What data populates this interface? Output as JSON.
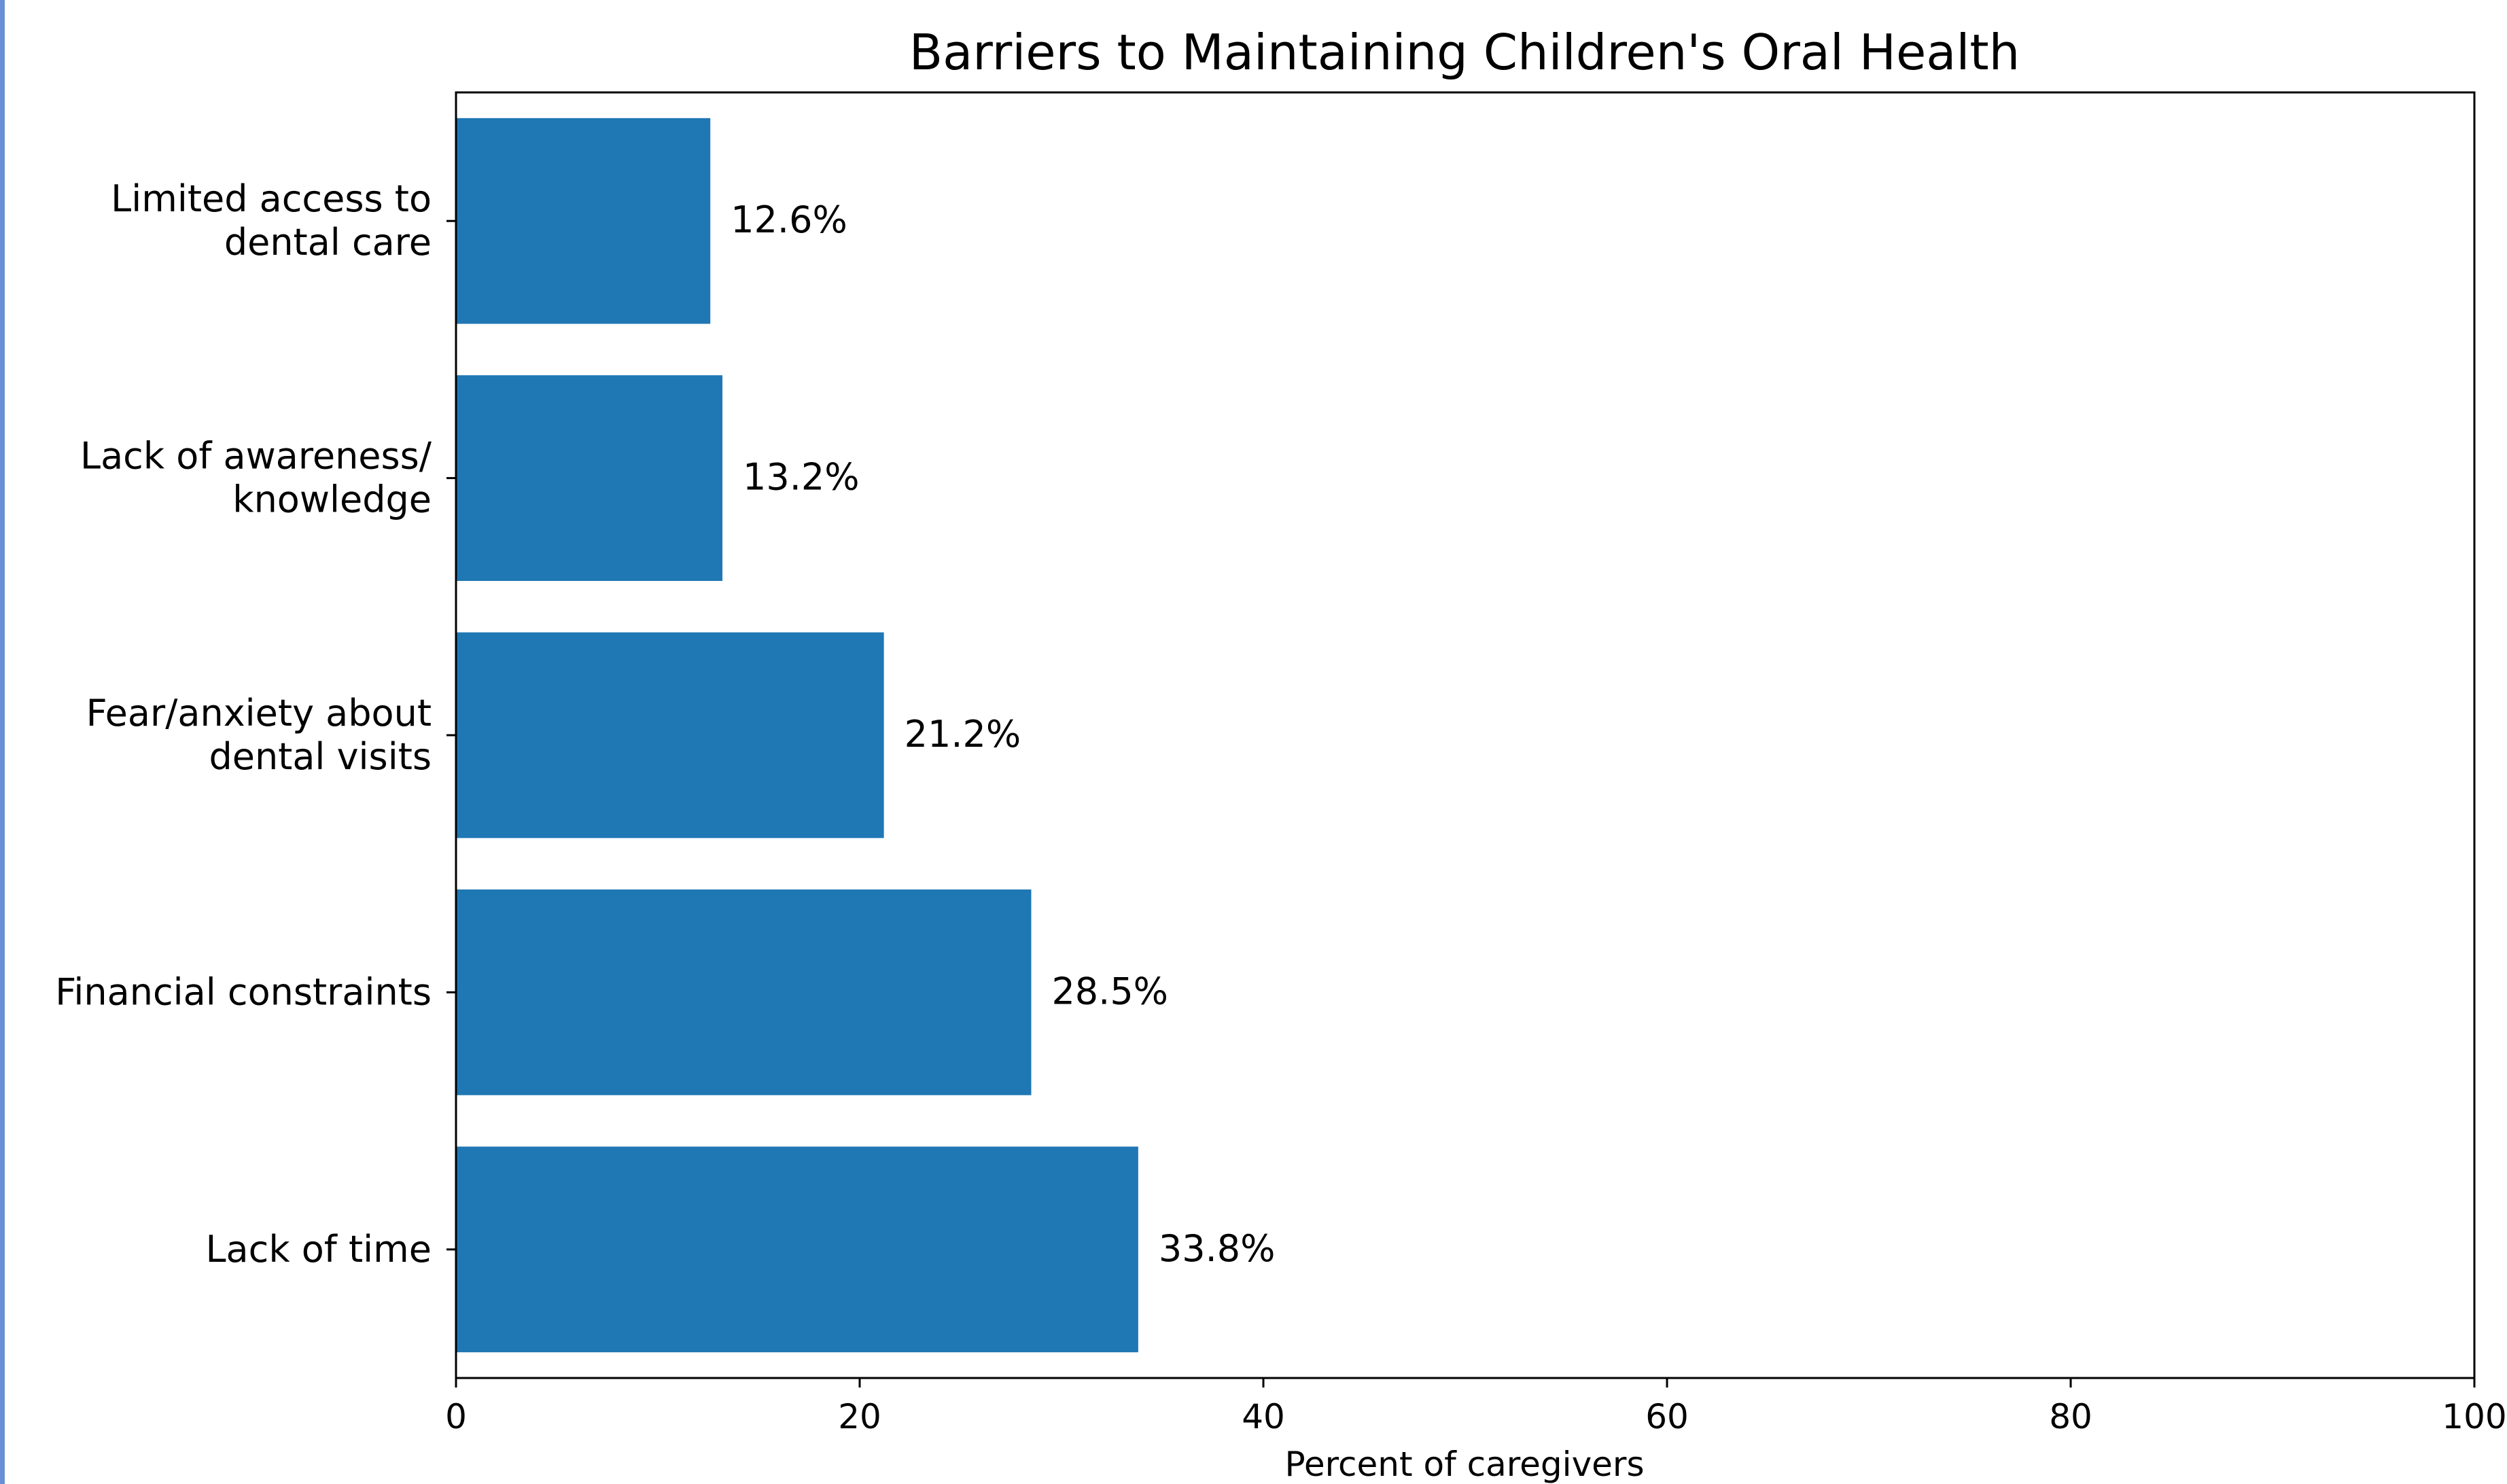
{
  "chart_data": {
    "type": "bar",
    "orientation": "horizontal",
    "title": "Barriers to Maintaining Children's Oral Health",
    "xlabel": "Percent of caregivers",
    "ylabel": "",
    "xlim": [
      0,
      100
    ],
    "x_ticks": [
      "0",
      "20",
      "40",
      "60",
      "80",
      "100"
    ],
    "grid": false,
    "bar_color": "#1f77b4",
    "categories": [
      [
        "Lack of time"
      ],
      [
        "Financial constraints"
      ],
      [
        "Fear/anxiety about",
        "dental visits"
      ],
      [
        "Lack of awareness/",
        "knowledge"
      ],
      [
        "Limited access to",
        "dental care"
      ]
    ],
    "values": [
      33.8,
      28.5,
      21.2,
      13.2,
      12.6
    ],
    "value_labels": [
      "33.8%",
      "28.5%",
      "21.2%",
      "13.2%",
      "12.6%"
    ]
  }
}
